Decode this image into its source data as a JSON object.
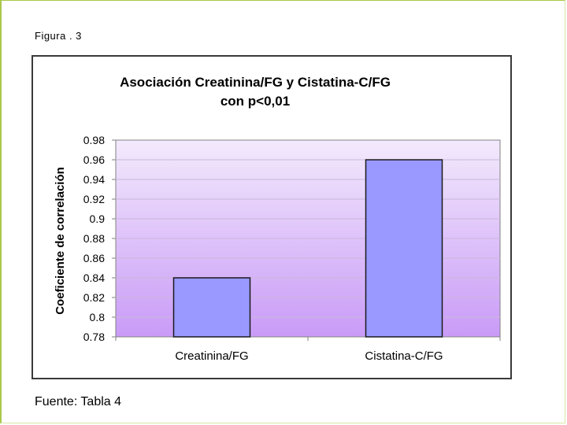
{
  "figure_label": "Figura . 3",
  "source_note": "Fuente: Tabla 4",
  "chart_data": {
    "type": "bar",
    "title_line1": "Asociación Creatinina/FG y Cistatina-C/FG",
    "title_line2": "con p<0,01",
    "xlabel": "",
    "ylabel": "Coeficiente de correlación",
    "categories": [
      "Creatinina/FG",
      "Cistatina-C/FG"
    ],
    "values": [
      0.84,
      0.96
    ],
    "ylim": [
      0.78,
      0.98
    ],
    "yticks": [
      "0.98",
      "0.96",
      "0.94",
      "0.92",
      "0.9",
      "0.88",
      "0.86",
      "0.84",
      "0.82",
      "0.8",
      "0.78"
    ],
    "grid": true,
    "legend": "none",
    "colors": {
      "bar_fill": "#9999ff",
      "bar_stroke": "#1a1a1a",
      "plot_bg_top": "#f3eafc",
      "plot_bg_bottom": "#c99bf7"
    }
  }
}
